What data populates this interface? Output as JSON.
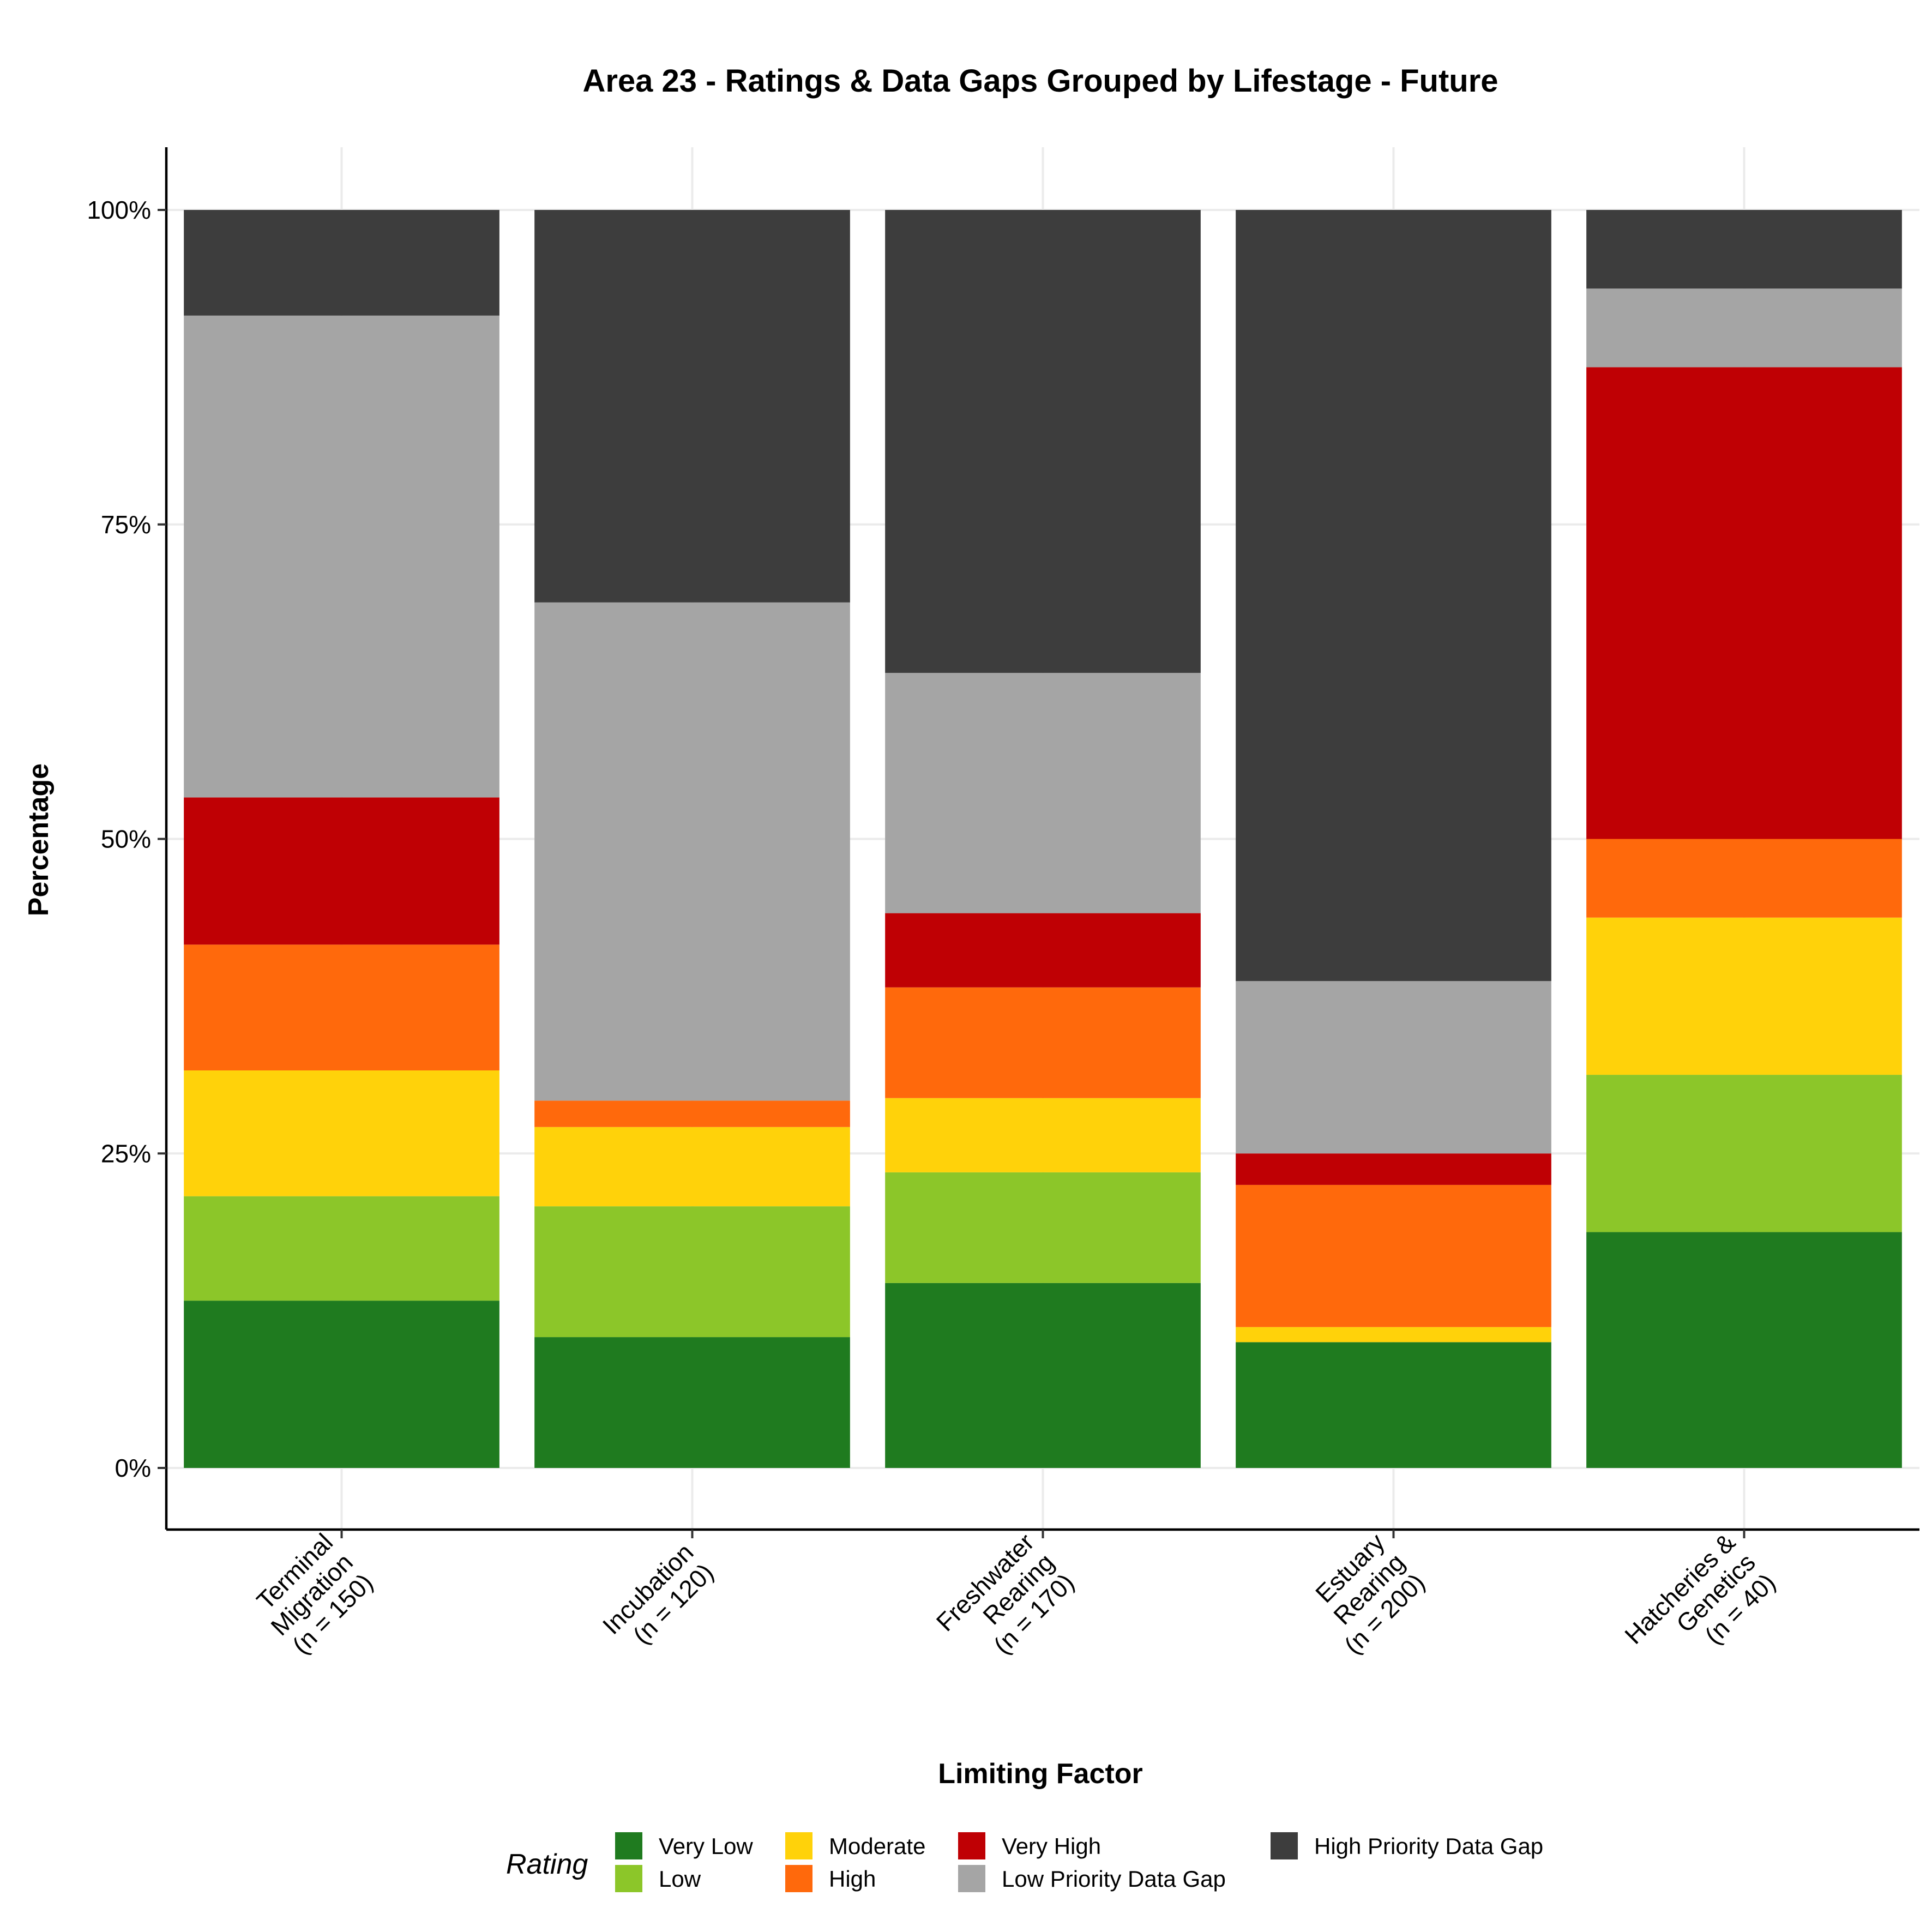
{
  "chart_data": {
    "type": "bar",
    "stacked": true,
    "percent": true,
    "title": "Area 23 - Ratings & Data Gaps Grouped by Lifestage - Future",
    "xlabel": "Limiting Factor",
    "ylabel": "Percentage",
    "ylim": [
      0,
      100
    ],
    "yticks": [
      0,
      25,
      50,
      75,
      100
    ],
    "ytick_labels": [
      "0%",
      "25%",
      "50%",
      "75%",
      "100%"
    ],
    "grid": true,
    "legend": {
      "title": "Rating",
      "position": "bottom"
    },
    "categories": [
      [
        "Terminal",
        "Migration",
        "(n = 150)"
      ],
      [
        "Incubation",
        "(n = 120)"
      ],
      [
        "Freshwater",
        "Rearing",
        "(n = 170)"
      ],
      [
        "Estuary",
        "Rearing",
        "(n = 200)"
      ],
      [
        "Hatcheries &",
        "Genetics",
        "(n = 40)"
      ]
    ],
    "series": [
      {
        "name": "Very Low",
        "color": "#1f7b1f",
        "values": [
          13.3,
          10.4,
          14.7,
          10.0,
          18.75
        ]
      },
      {
        "name": "Low",
        "color": "#8cc629",
        "values": [
          8.3,
          10.4,
          8.8,
          0.0,
          12.5
        ]
      },
      {
        "name": "Moderate",
        "color": "#ffd20a",
        "values": [
          10.0,
          6.3,
          5.9,
          1.2,
          12.5
        ]
      },
      {
        "name": "High",
        "color": "#ff690c",
        "values": [
          10.0,
          2.1,
          8.8,
          11.3,
          6.25
        ]
      },
      {
        "name": "Very High",
        "color": "#bf0004",
        "values": [
          11.7,
          0.0,
          5.9,
          2.5,
          37.5
        ]
      },
      {
        "name": "Low Priority Data Gap",
        "color": "#a5a5a5",
        "values": [
          38.3,
          39.6,
          19.1,
          13.7,
          6.25
        ]
      },
      {
        "name": "High Priority Data Gap",
        "color": "#3d3d3d",
        "values": [
          8.4,
          31.2,
          36.8,
          61.3,
          6.25
        ]
      }
    ]
  }
}
